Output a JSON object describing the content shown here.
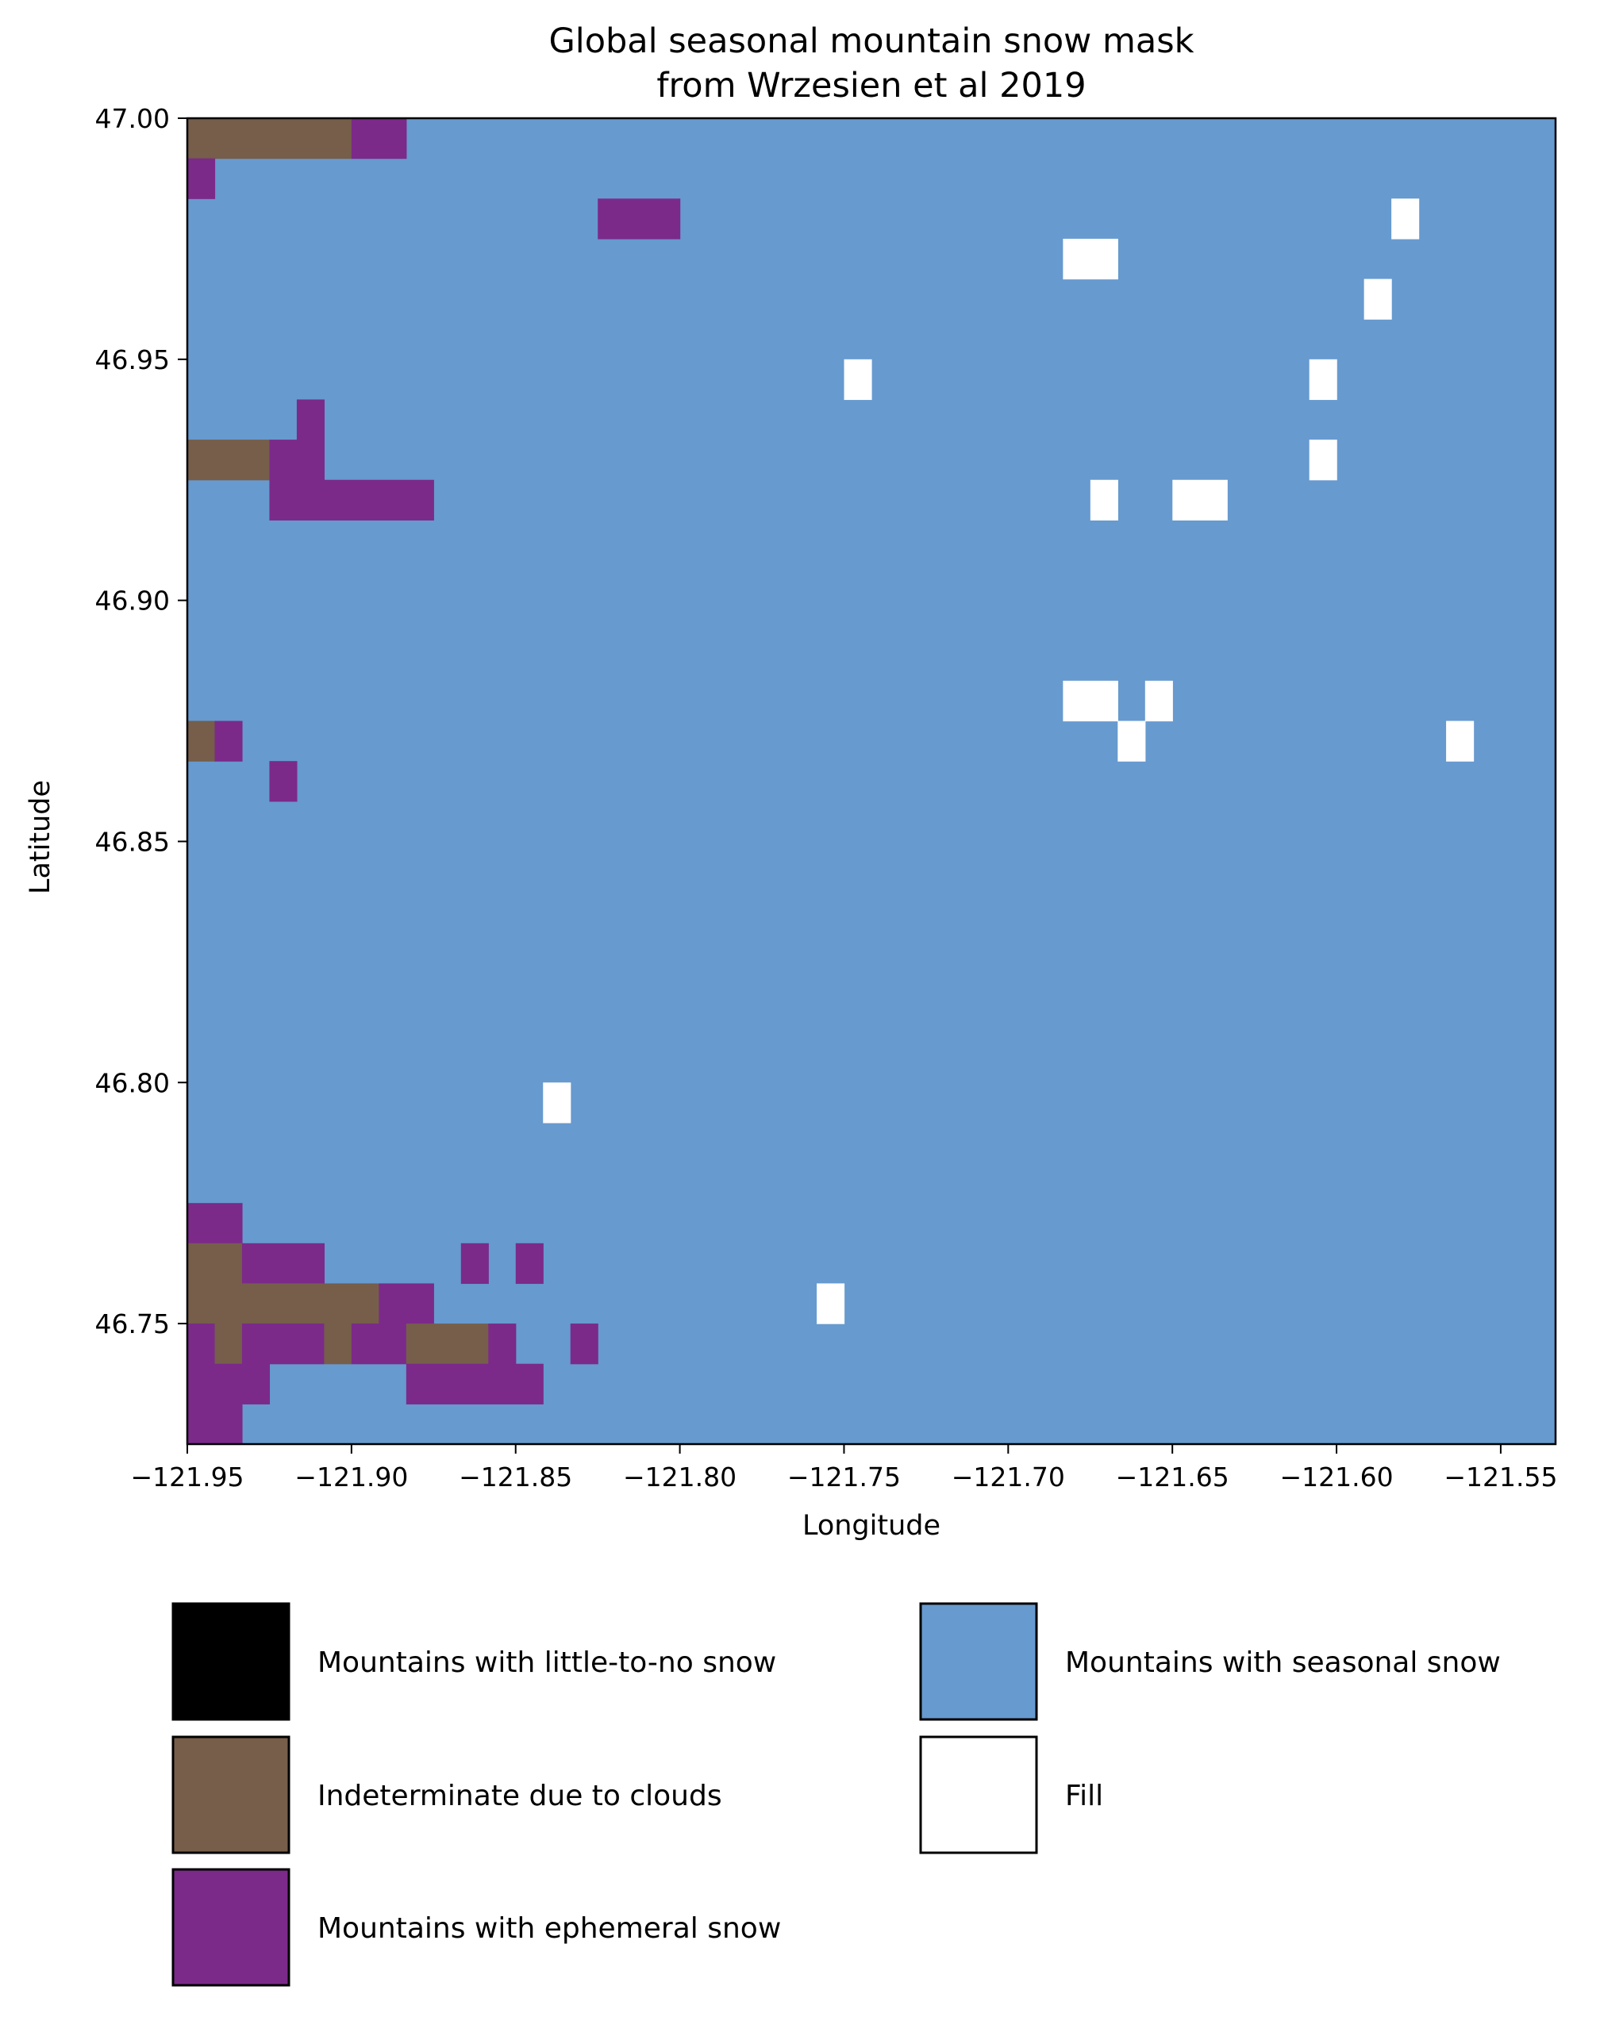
{
  "chart_data": {
    "type": "heatmap",
    "title": "Global seasonal mountain snow mask",
    "subtitle": "from Wrzesien et al 2019",
    "xlabel": "Longitude",
    "ylabel": "Latitude",
    "xlim": [
      -121.95,
      -121.5333
    ],
    "ylim": [
      46.725,
      47.0
    ],
    "xticks": [
      -121.95,
      -121.9,
      -121.85,
      -121.8,
      -121.75,
      -121.7,
      -121.65,
      -121.6,
      -121.55
    ],
    "xtick_labels": [
      "−121.95",
      "−121.90",
      "−121.85",
      "−121.80",
      "−121.75",
      "−121.70",
      "−121.65",
      "−121.60",
      "−121.55"
    ],
    "yticks": [
      47.0,
      46.95,
      46.9,
      46.85,
      46.8,
      46.75
    ],
    "ytick_labels": [
      "47.00",
      "46.95",
      "46.90",
      "46.85",
      "46.80",
      "46.75"
    ],
    "cell_size_deg": 0.008333,
    "grid_cols": 50,
    "grid_rows": 33,
    "background_class": 3,
    "classes": [
      {
        "id": 0,
        "label": "Mountains with little-to-no snow",
        "color": "#000000"
      },
      {
        "id": 1,
        "label": "Indeterminate due to clouds",
        "color": "#765e4a"
      },
      {
        "id": 2,
        "label": "Mountains with ephemeral snow",
        "color": "#7b2a8a"
      },
      {
        "id": 3,
        "label": "Mountains with seasonal snow",
        "color": "#679acf"
      },
      {
        "id": 4,
        "label": "Fill",
        "color": "#ffffff"
      }
    ],
    "cells": [
      {
        "row": 0,
        "col_start": 0,
        "col_end": 5,
        "class": 1
      },
      {
        "row": 0,
        "col_start": 6,
        "col_end": 7,
        "class": 2
      },
      {
        "row": 1,
        "col_start": 0,
        "col_end": 0,
        "class": 2
      },
      {
        "row": 2,
        "col_start": 15,
        "col_end": 17,
        "class": 2
      },
      {
        "row": 2,
        "col_start": 44,
        "col_end": 44,
        "class": 4
      },
      {
        "row": 3,
        "col_start": 32,
        "col_end": 33,
        "class": 4
      },
      {
        "row": 4,
        "col_start": 43,
        "col_end": 43,
        "class": 4
      },
      {
        "row": 6,
        "col_start": 24,
        "col_end": 24,
        "class": 4
      },
      {
        "row": 6,
        "col_start": 41,
        "col_end": 41,
        "class": 4
      },
      {
        "row": 7,
        "col_start": 4,
        "col_end": 4,
        "class": 2
      },
      {
        "row": 8,
        "col_start": 0,
        "col_end": 2,
        "class": 1
      },
      {
        "row": 8,
        "col_start": 3,
        "col_end": 4,
        "class": 2
      },
      {
        "row": 8,
        "col_start": 41,
        "col_end": 41,
        "class": 4
      },
      {
        "row": 9,
        "col_start": 3,
        "col_end": 8,
        "class": 2
      },
      {
        "row": 9,
        "col_start": 33,
        "col_end": 33,
        "class": 4
      },
      {
        "row": 9,
        "col_start": 36,
        "col_end": 37,
        "class": 4
      },
      {
        "row": 14,
        "col_start": 32,
        "col_end": 33,
        "class": 4
      },
      {
        "row": 14,
        "col_start": 35,
        "col_end": 35,
        "class": 4
      },
      {
        "row": 15,
        "col_start": 0,
        "col_end": 0,
        "class": 1
      },
      {
        "row": 15,
        "col_start": 1,
        "col_end": 1,
        "class": 2
      },
      {
        "row": 15,
        "col_start": 34,
        "col_end": 34,
        "class": 4
      },
      {
        "row": 15,
        "col_start": 46,
        "col_end": 46,
        "class": 4
      },
      {
        "row": 16,
        "col_start": 3,
        "col_end": 3,
        "class": 2
      },
      {
        "row": 24,
        "col_start": 13,
        "col_end": 13,
        "class": 4
      },
      {
        "row": 27,
        "col_start": 0,
        "col_end": 1,
        "class": 2
      },
      {
        "row": 28,
        "col_start": 0,
        "col_end": 1,
        "class": 1
      },
      {
        "row": 28,
        "col_start": 2,
        "col_end": 4,
        "class": 2
      },
      {
        "row": 28,
        "col_start": 10,
        "col_end": 10,
        "class": 2
      },
      {
        "row": 28,
        "col_start": 12,
        "col_end": 12,
        "class": 2
      },
      {
        "row": 29,
        "col_start": 0,
        "col_end": 6,
        "class": 1
      },
      {
        "row": 29,
        "col_start": 7,
        "col_end": 8,
        "class": 2
      },
      {
        "row": 29,
        "col_start": 23,
        "col_end": 23,
        "class": 4
      },
      {
        "row": 30,
        "col_start": 0,
        "col_end": 0,
        "class": 2
      },
      {
        "row": 30,
        "col_start": 1,
        "col_end": 1,
        "class": 1
      },
      {
        "row": 30,
        "col_start": 2,
        "col_end": 4,
        "class": 2
      },
      {
        "row": 30,
        "col_start": 5,
        "col_end": 5,
        "class": 1
      },
      {
        "row": 30,
        "col_start": 6,
        "col_end": 7,
        "class": 2
      },
      {
        "row": 30,
        "col_start": 8,
        "col_end": 10,
        "class": 1
      },
      {
        "row": 30,
        "col_start": 11,
        "col_end": 11,
        "class": 2
      },
      {
        "row": 30,
        "col_start": 14,
        "col_end": 14,
        "class": 2
      },
      {
        "row": 31,
        "col_start": 0,
        "col_end": 2,
        "class": 2
      },
      {
        "row": 31,
        "col_start": 8,
        "col_end": 12,
        "class": 2
      },
      {
        "row": 32,
        "col_start": 0,
        "col_end": 1,
        "class": 2
      }
    ],
    "legend": {
      "placement": "bottom",
      "columns": [
        [
          0,
          1,
          2
        ],
        [
          3,
          4
        ]
      ]
    }
  }
}
